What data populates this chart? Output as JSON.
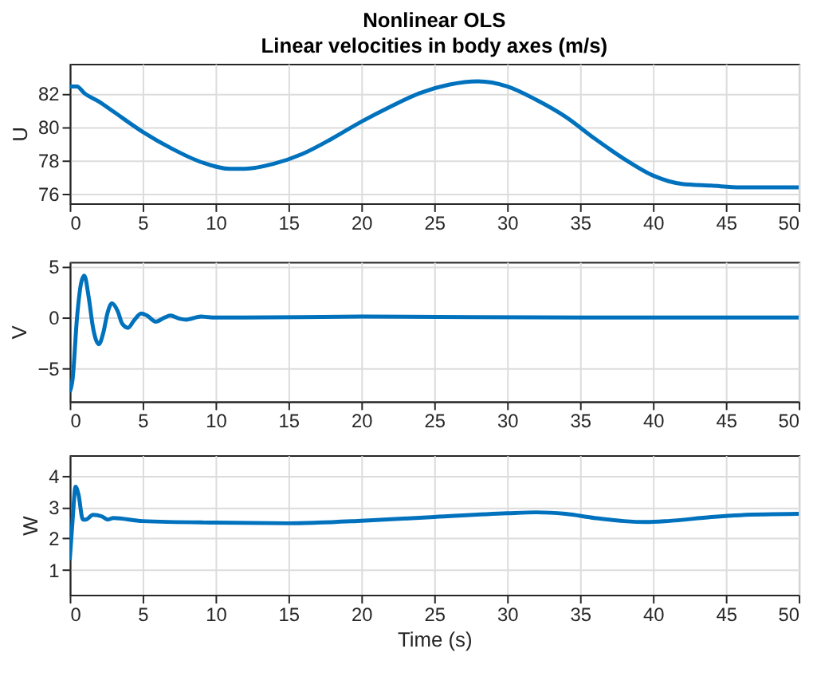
{
  "chart_data": [
    {
      "type": "line",
      "title": "Nonlinear OLS",
      "subtitle": "Linear velocities in body axes (m/s)",
      "ylabel": "U",
      "xlim": [
        0,
        50
      ],
      "xticks": [
        0,
        5,
        10,
        15,
        20,
        25,
        30,
        35,
        40,
        45,
        50
      ],
      "ylim": [
        75.45,
        83.75
      ],
      "yticks": [
        76,
        78,
        80,
        82
      ],
      "grid": true,
      "series": [
        {
          "color": "#0072bd",
          "x": [
            0,
            0.5,
            1,
            2,
            3,
            5,
            7,
            9,
            11,
            12,
            14,
            16,
            18,
            20,
            22,
            24,
            26,
            28,
            30,
            32,
            34,
            36,
            38,
            40,
            42,
            44,
            46,
            50
          ],
          "values": [
            82.4,
            82.4,
            82.0,
            81.5,
            80.9,
            79.7,
            78.7,
            77.9,
            77.5,
            77.5,
            77.8,
            78.4,
            79.3,
            80.3,
            81.2,
            82.0,
            82.5,
            82.7,
            82.4,
            81.6,
            80.6,
            79.3,
            78.1,
            77.1,
            76.6,
            76.5,
            76.4,
            76.4
          ]
        }
      ]
    },
    {
      "type": "line",
      "ylabel": "V",
      "xlim": [
        0,
        50
      ],
      "xticks": [
        0,
        5,
        10,
        15,
        20,
        25,
        30,
        35,
        40,
        45,
        50
      ],
      "ylim": [
        -8.2,
        5.45
      ],
      "yticks": [
        -5,
        0,
        5
      ],
      "grid": true,
      "series": [
        {
          "color": "#0072bd",
          "x": [
            0,
            0.2,
            0.5,
            0.8,
            1,
            1.3,
            1.6,
            2,
            2.3,
            2.6,
            2.9,
            3.3,
            3.6,
            4,
            4.4,
            4.9,
            5.3,
            5.9,
            6.5,
            6.9,
            7.5,
            8,
            9,
            10,
            12,
            20,
            35,
            40,
            50
          ],
          "values": [
            -7.3,
            -6,
            0,
            3.5,
            4.1,
            2,
            -1,
            -2.6,
            -1.5,
            0.5,
            1.4,
            0.6,
            -0.6,
            -1.0,
            -0.3,
            0.4,
            0.2,
            -0.4,
            0,
            0.2,
            -0.1,
            -0.2,
            0.1,
            0,
            0,
            0.1,
            0,
            0,
            0
          ]
        }
      ]
    },
    {
      "type": "line",
      "xlabel": "Time (s)",
      "ylabel": "W",
      "xlim": [
        0,
        50
      ],
      "xticks": [
        0,
        5,
        10,
        15,
        20,
        25,
        30,
        35,
        40,
        45,
        50
      ],
      "ylim": [
        0.2,
        4.65
      ],
      "yticks": [
        1,
        2,
        3,
        4
      ],
      "grid": true,
      "series": [
        {
          "color": "#0072bd",
          "x": [
            0,
            0.2,
            0.4,
            0.6,
            0.9,
            1.1,
            1.6,
            2.2,
            2.6,
            3,
            5,
            10,
            15,
            17,
            20,
            25,
            30,
            32,
            34,
            36,
            38,
            39.5,
            41,
            44,
            46,
            50
          ],
          "values": [
            1.3,
            2.6,
            3.65,
            3.4,
            2.6,
            2.6,
            2.75,
            2.7,
            2.6,
            2.65,
            2.55,
            2.5,
            2.48,
            2.5,
            2.56,
            2.68,
            2.8,
            2.83,
            2.78,
            2.65,
            2.55,
            2.52,
            2.55,
            2.68,
            2.74,
            2.78
          ]
        }
      ]
    }
  ]
}
